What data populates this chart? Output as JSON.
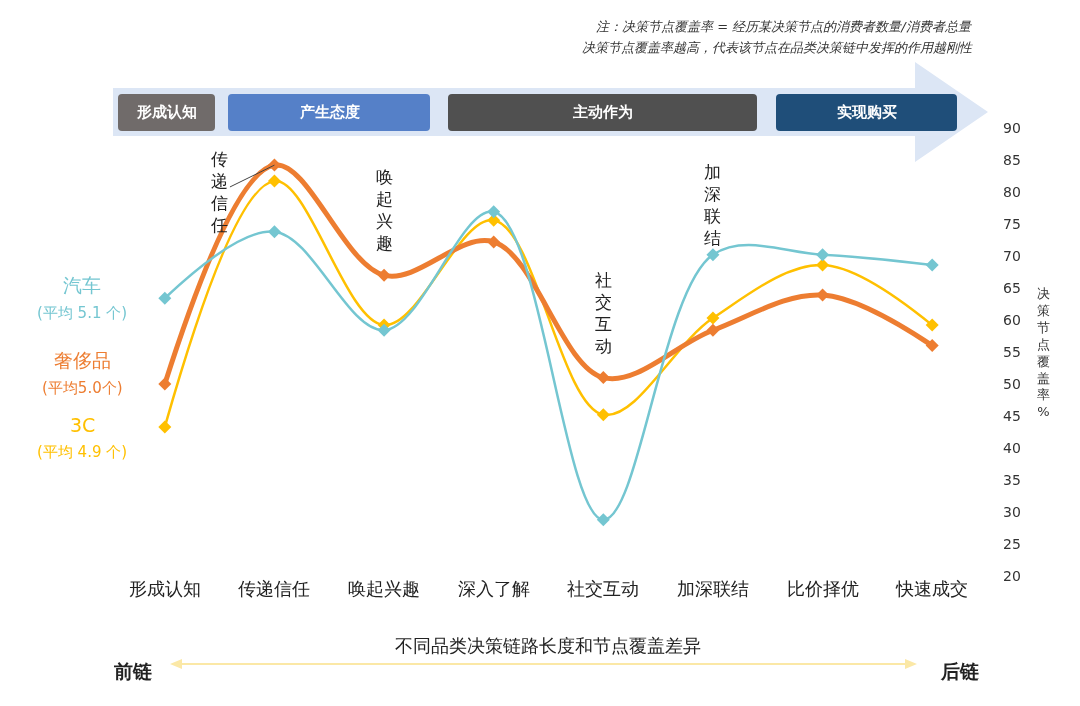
{
  "chart_data": {
    "type": "line",
    "categories": [
      "形成认知",
      "传递信任",
      "唤起兴趣",
      "深入了解",
      "社交互动",
      "加深联结",
      "比价择优",
      "快速成交"
    ],
    "series": [
      {
        "name": "汽车",
        "color": "#74c6d1",
        "values": [
          63.4,
          73.8,
          58.4,
          76.9,
          28.8,
          70.2,
          70.2,
          68.6
        ]
      },
      {
        "name": "奢侈品",
        "color": "#ed7d31",
        "values": [
          50,
          84.2,
          67,
          72.2,
          51,
          58.4,
          63.9,
          56
        ]
      },
      {
        "name": "3C",
        "color": "#ffc000",
        "values": [
          43.3,
          81.7,
          59.2,
          75.6,
          45.2,
          60.3,
          68.6,
          59.2
        ]
      }
    ],
    "xlabel": "不同品类决策链路长度和节点覆盖差异",
    "ylabel": "决策节点覆盖率%",
    "ylim": [
      20,
      90
    ],
    "yticks": [
      20,
      25,
      30,
      35,
      40,
      45,
      50,
      55,
      60,
      65,
      70,
      75,
      80,
      85,
      90
    ],
    "grid": false,
    "legend": false,
    "marker": "diamond",
    "line_style": "solid",
    "annotations": [
      "(平均 5.1 个)",
      "(平均5.0个)",
      "(平均 4.9 个)",
      "注：决策节点覆盖率 = 经历某决策节点的消费者数量/消费者总量",
      "决策节点覆盖率越高，代表该节点在品类决策链中发挥的作用越刚性",
      "形成认知",
      "产生态度",
      "主动作为",
      "实现购买",
      "前链",
      "后链",
      {
        "text": "传递信任",
        "x": "传递信任",
        "y": 84.2
      },
      {
        "text": "唤起兴趣",
        "x": "唤起兴趣",
        "y": 67
      },
      {
        "text": "社交互动",
        "x": "社交互动",
        "y": 51
      },
      {
        "text": "加深联结",
        "x": "加深联结",
        "y": 70.2
      }
    ]
  }
}
